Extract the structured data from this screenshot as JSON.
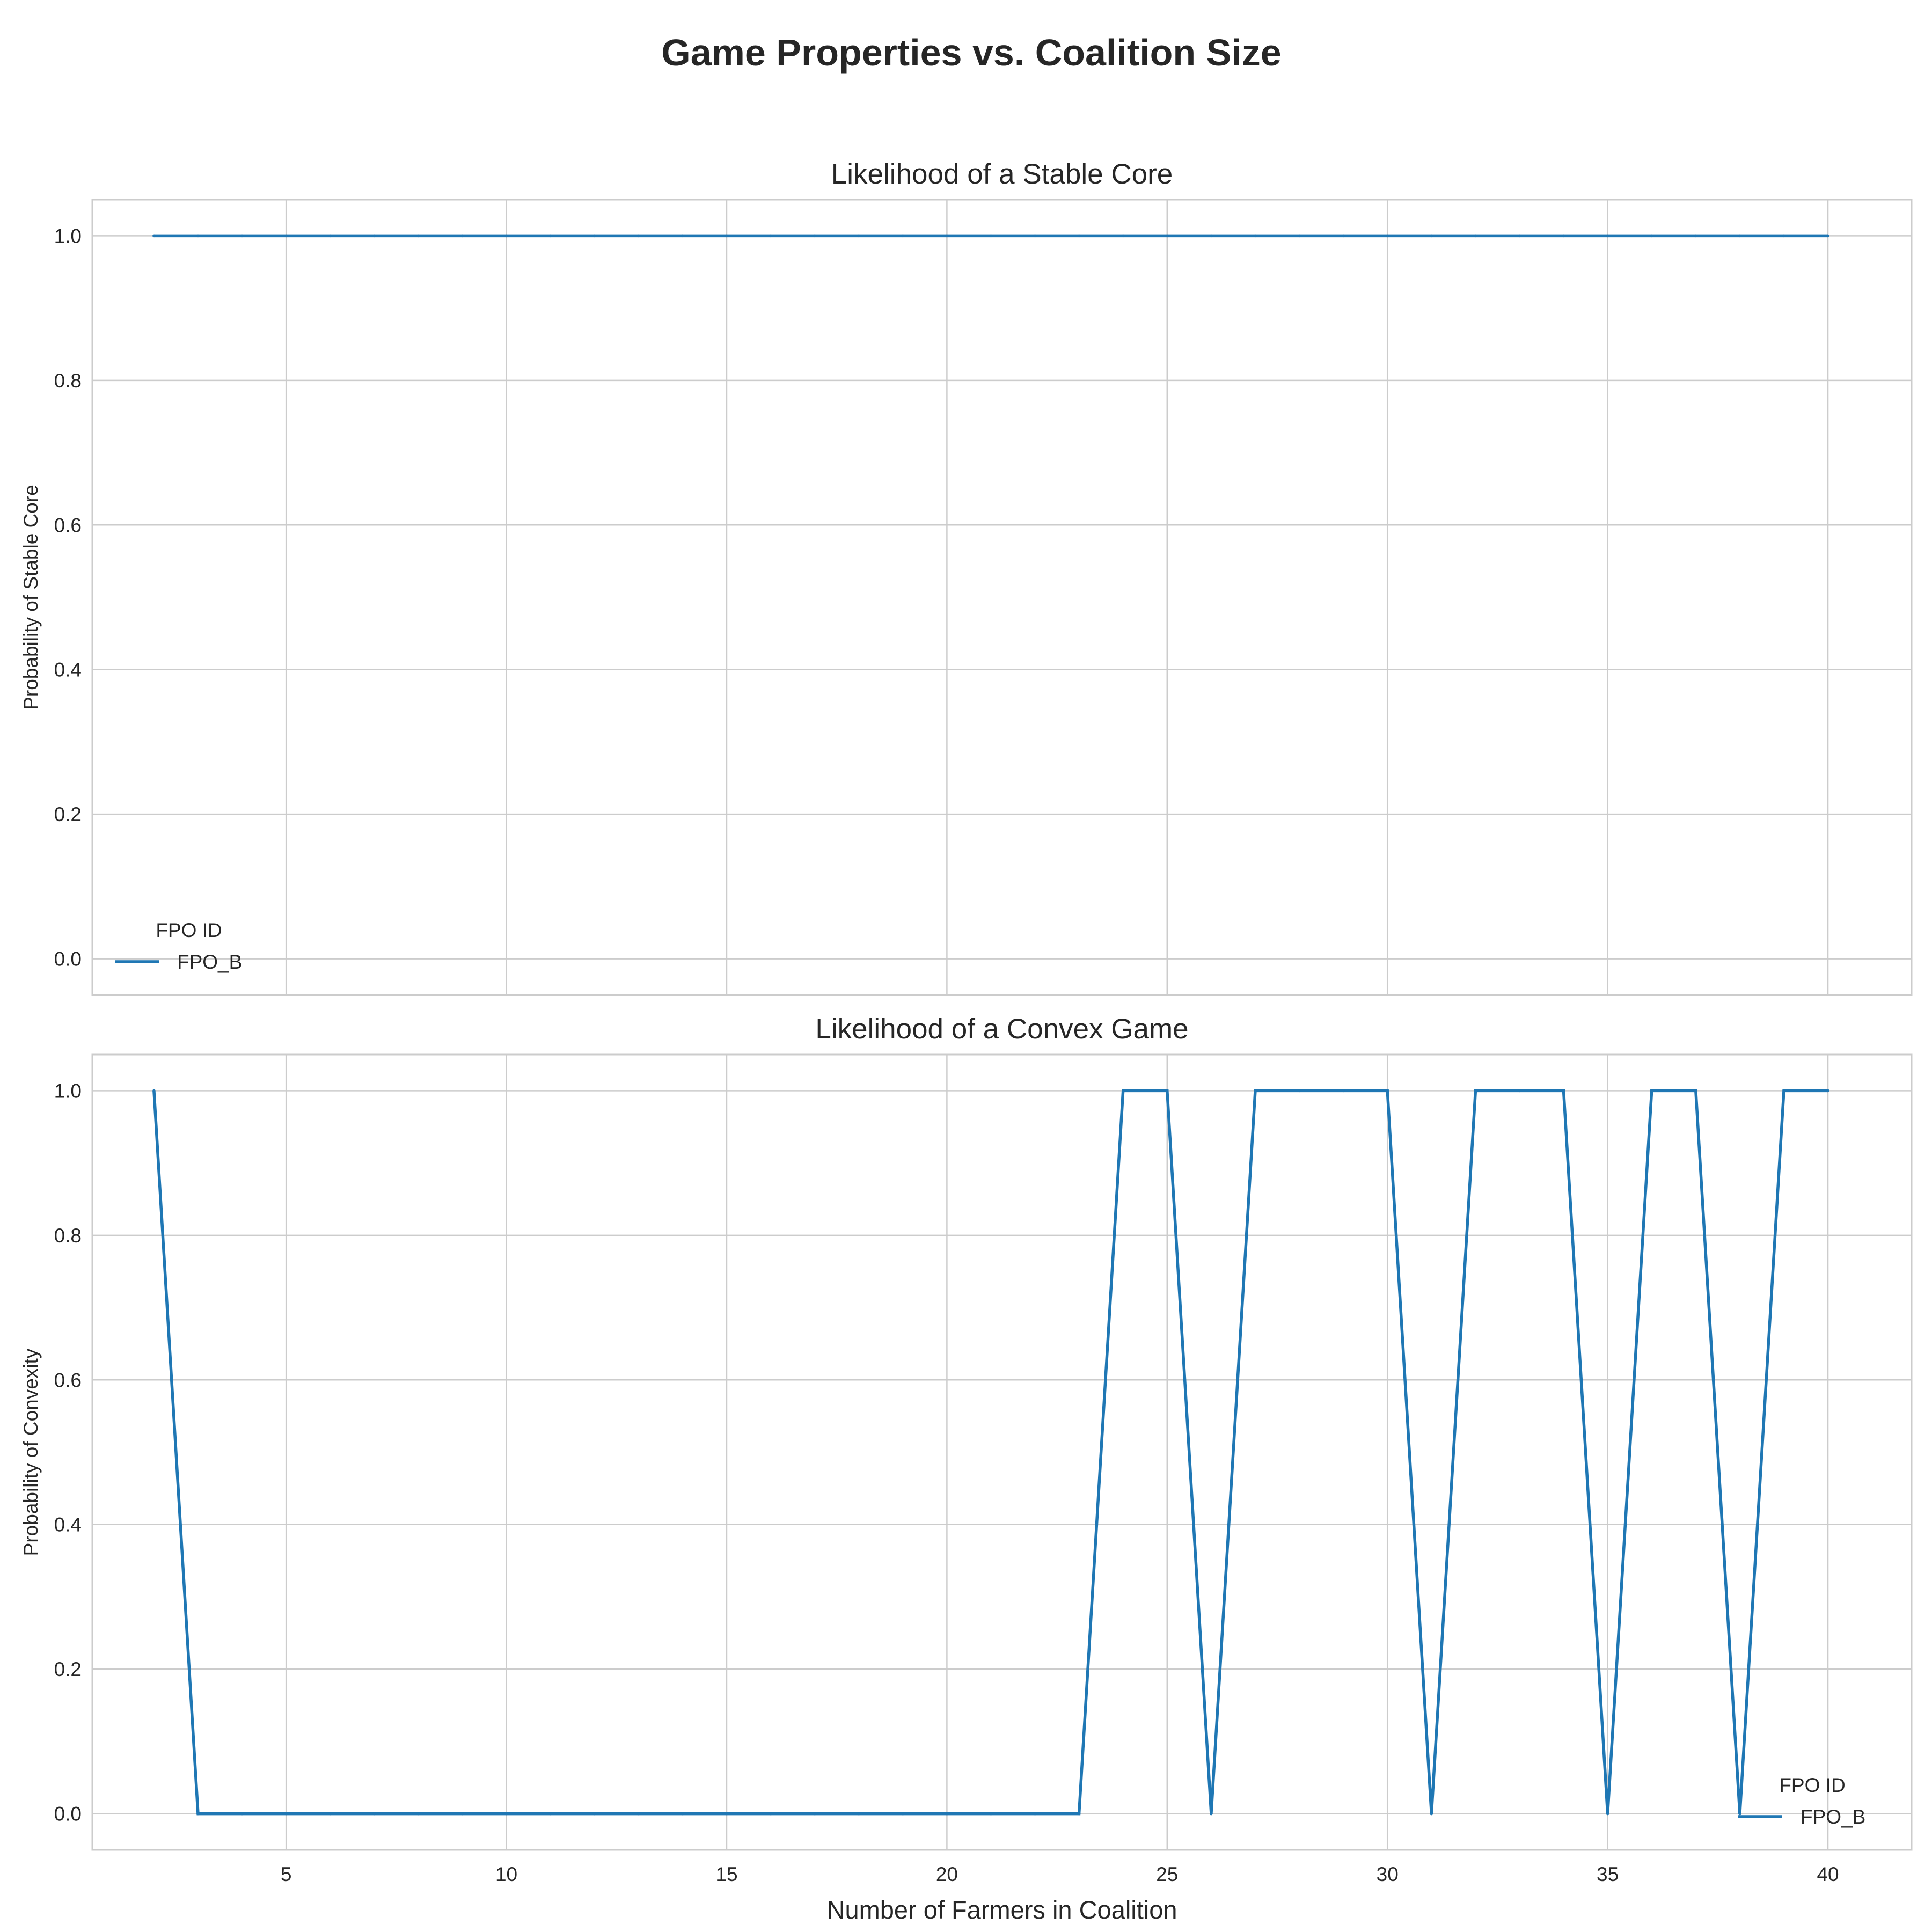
{
  "figure": {
    "title": "Game Properties vs. Coalition Size"
  },
  "colors": {
    "series": "#1f77b4",
    "grid": "#cccccc",
    "spine": "#cccccc",
    "text": "#262626"
  },
  "chart_data": [
    {
      "type": "line",
      "title": "Likelihood of a Stable Core",
      "xlabel": "",
      "ylabel": "Probability of Stable Core",
      "xlim": [
        0.6,
        41.9
      ],
      "ylim": [
        -0.05,
        1.05
      ],
      "xticks": [
        5,
        10,
        15,
        20,
        25,
        30,
        35,
        40
      ],
      "xtick_labels_visible": false,
      "yticks": [
        0.0,
        0.2,
        0.4,
        0.6,
        0.8,
        1.0
      ],
      "ytick_labels": [
        "0.0",
        "0.2",
        "0.4",
        "0.6",
        "0.8",
        "1.0"
      ],
      "grid": true,
      "legend": {
        "title": "FPO ID",
        "placement": "lower-left"
      },
      "series": [
        {
          "name": "FPO_B",
          "x": [
            2,
            3,
            4,
            5,
            6,
            7,
            8,
            9,
            10,
            11,
            12,
            13,
            14,
            15,
            16,
            17,
            18,
            19,
            20,
            21,
            22,
            23,
            24,
            25,
            26,
            27,
            28,
            29,
            30,
            31,
            32,
            33,
            34,
            35,
            36,
            37,
            38,
            39,
            40
          ],
          "values": [
            1,
            1,
            1,
            1,
            1,
            1,
            1,
            1,
            1,
            1,
            1,
            1,
            1,
            1,
            1,
            1,
            1,
            1,
            1,
            1,
            1,
            1,
            1,
            1,
            1,
            1,
            1,
            1,
            1,
            1,
            1,
            1,
            1,
            1,
            1,
            1,
            1,
            1,
            1
          ]
        }
      ]
    },
    {
      "type": "line",
      "title": "Likelihood of a Convex Game",
      "xlabel": "Number of Farmers in Coalition",
      "ylabel": "Probability of Convexity",
      "xlim": [
        0.6,
        41.9
      ],
      "ylim": [
        -0.05,
        1.05
      ],
      "xticks": [
        5,
        10,
        15,
        20,
        25,
        30,
        35,
        40
      ],
      "xtick_labels": [
        "5",
        "10",
        "15",
        "20",
        "25",
        "30",
        "35",
        "40"
      ],
      "xtick_labels_visible": true,
      "yticks": [
        0.0,
        0.2,
        0.4,
        0.6,
        0.8,
        1.0
      ],
      "ytick_labels": [
        "0.0",
        "0.2",
        "0.4",
        "0.6",
        "0.8",
        "1.0"
      ],
      "grid": true,
      "legend": {
        "title": "FPO ID",
        "placement": "lower-right"
      },
      "series": [
        {
          "name": "FPO_B",
          "x": [
            2,
            3,
            4,
            5,
            6,
            7,
            8,
            9,
            10,
            11,
            12,
            13,
            14,
            15,
            16,
            17,
            18,
            19,
            20,
            21,
            22,
            23,
            24,
            25,
            26,
            27,
            28,
            29,
            30,
            31,
            32,
            33,
            34,
            35,
            36,
            37,
            38,
            39,
            40
          ],
          "values": [
            1,
            0,
            0,
            0,
            0,
            0,
            0,
            0,
            0,
            0,
            0,
            0,
            0,
            0,
            0,
            0,
            0,
            0,
            0,
            0,
            0,
            0,
            1,
            1,
            0,
            1,
            1,
            1,
            1,
            0,
            1,
            1,
            1,
            0,
            1,
            1,
            0,
            1,
            1
          ]
        }
      ]
    }
  ]
}
